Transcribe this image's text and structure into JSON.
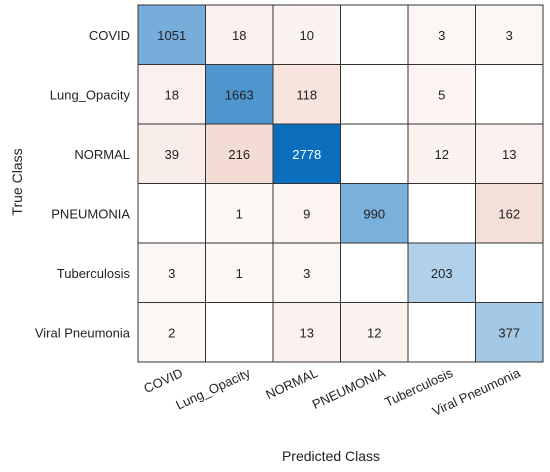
{
  "chart_data": {
    "type": "heatmap",
    "xlabel": "Predicted Class",
    "ylabel": "True Class",
    "x_categories": [
      "COVID",
      "Lung_Opacity",
      "NORMAL",
      "PNEUMONIA",
      "Tuberculosis",
      "Viral Pneumonia"
    ],
    "y_categories": [
      "COVID",
      "Lung_Opacity",
      "NORMAL",
      "PNEUMONIA",
      "Tuberculosis",
      "Viral Pneumonia"
    ],
    "matrix": [
      [
        1051,
        18,
        10,
        null,
        3,
        3
      ],
      [
        18,
        1663,
        118,
        null,
        5,
        null
      ],
      [
        39,
        216,
        2778,
        null,
        12,
        13
      ],
      [
        null,
        1,
        9,
        990,
        null,
        162
      ],
      [
        3,
        1,
        3,
        null,
        203,
        null
      ],
      [
        2,
        null,
        13,
        12,
        null,
        377
      ]
    ],
    "colors": {
      "diagonal_high": "#0b6ebd",
      "diagonal_low": "#ffffff",
      "offdiagonal_high": "#f3dcd3",
      "offdiagonal_low": "#ffffff",
      "grid": "#333333"
    }
  }
}
